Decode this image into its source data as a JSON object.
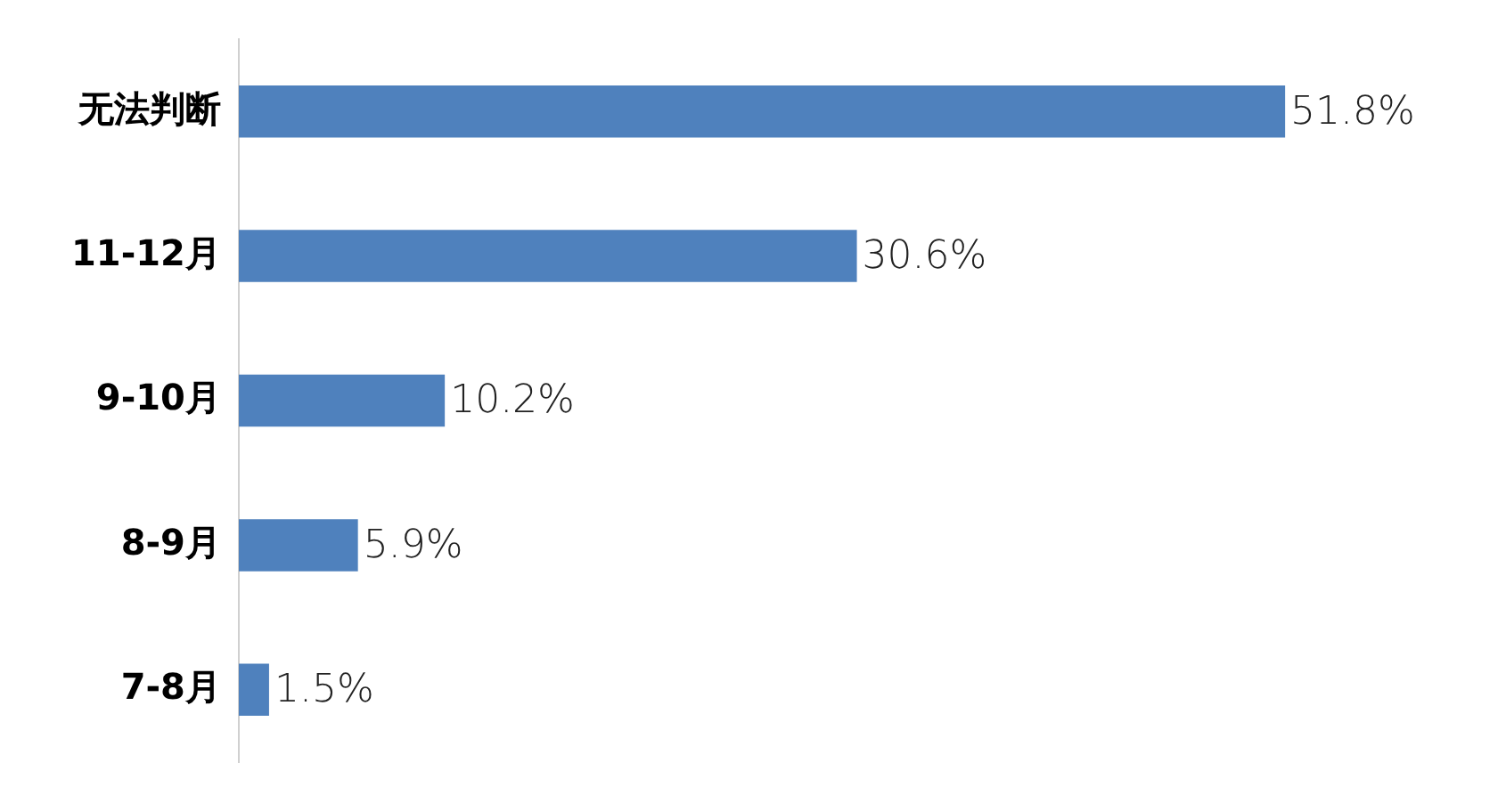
{
  "chart_data": {
    "type": "bar",
    "orientation": "horizontal",
    "categories": [
      "无法判断",
      "11-12月",
      "9-10月",
      "8-9月",
      "7-8月"
    ],
    "values": [
      51.8,
      30.6,
      10.2,
      5.9,
      1.5
    ],
    "value_labels": [
      "51.8%",
      "30.6%",
      "10.2%",
      "5.9%",
      "1.5%"
    ],
    "color": "#4f81bd",
    "legend": false,
    "tick_labels": "y"
  }
}
